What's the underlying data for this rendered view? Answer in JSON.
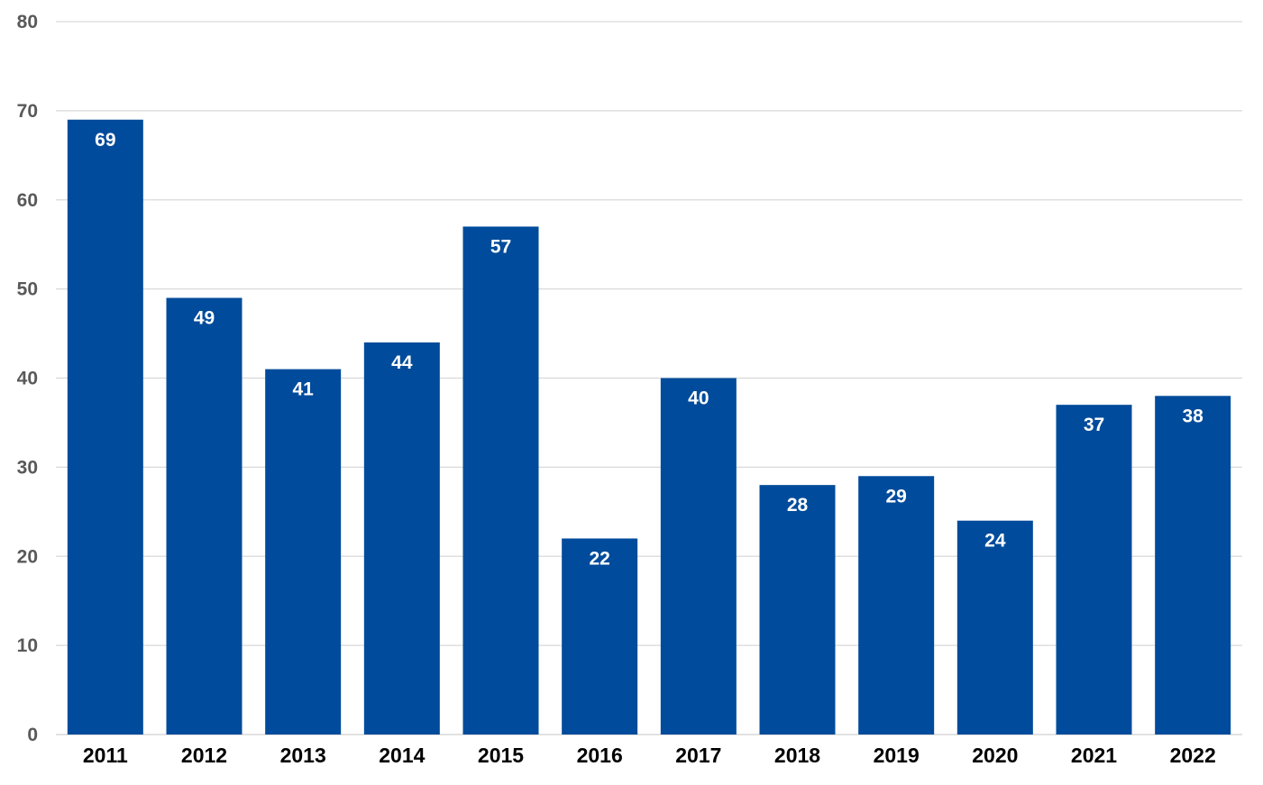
{
  "chart_data": {
    "type": "bar",
    "categories": [
      "2011",
      "2012",
      "2013",
      "2014",
      "2015",
      "2016",
      "2017",
      "2018",
      "2019",
      "2020",
      "2021",
      "2022"
    ],
    "values": [
      69,
      49,
      41,
      44,
      57,
      22,
      40,
      28,
      29,
      24,
      37,
      38
    ],
    "ylim": [
      0,
      80
    ],
    "yticks": [
      0,
      10,
      20,
      30,
      40,
      50,
      60,
      70,
      80
    ],
    "grid": true,
    "data_labels": true,
    "legend": false,
    "colors": {
      "bar": "#004b9b",
      "grid": "#d9d9d9",
      "data_label": "#ffffff",
      "y_tick": "#595959",
      "x_tick": "#000000"
    }
  }
}
